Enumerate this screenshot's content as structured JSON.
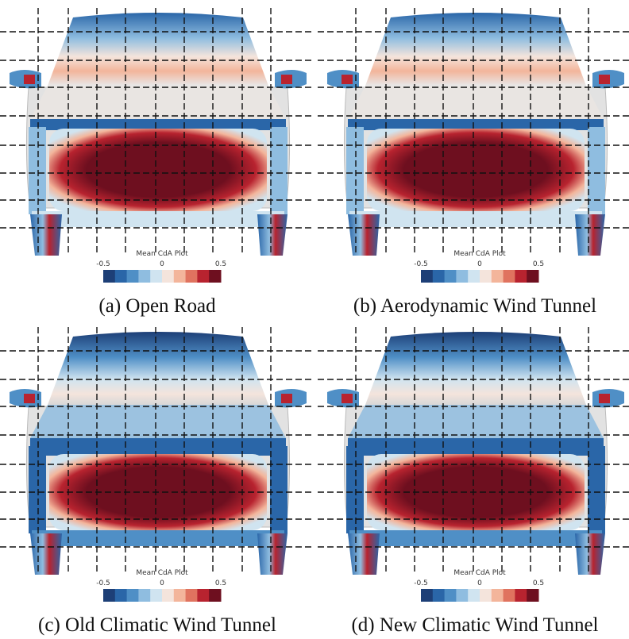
{
  "panels": [
    {
      "caption": "(a) Open Road",
      "colorbar": {
        "title": "Mean CdA Plot",
        "ticks": [
          -0.5,
          0,
          0.5
        ],
        "colors": [
          "#1d3f77",
          "#2a66a8",
          "#4f8fc6",
          "#8fbde0",
          "#d0e4f0",
          "#f4e4dc",
          "#f3b59b",
          "#e0735f",
          "#b8232f",
          "#6e0f1f"
        ]
      }
    },
    {
      "caption": "(b) Aerodynamic Wind Tunnel",
      "colorbar": {
        "title": "Mean CdA Plot",
        "ticks": [
          -0.5,
          0,
          0.5
        ],
        "colors": [
          "#1d3f77",
          "#2a66a8",
          "#4f8fc6",
          "#8fbde0",
          "#d0e4f0",
          "#f4e4dc",
          "#f3b59b",
          "#e0735f",
          "#b8232f",
          "#6e0f1f"
        ]
      }
    },
    {
      "caption": "(c) Old Climatic Wind Tunnel",
      "colorbar": {
        "title": "Mean CdA Plot",
        "ticks": [
          -0.5,
          0,
          0.5
        ],
        "colors": [
          "#1d3f77",
          "#2a66a8",
          "#4f8fc6",
          "#8fbde0",
          "#d0e4f0",
          "#f4e4dc",
          "#f3b59b",
          "#e0735f",
          "#b8232f",
          "#6e0f1f"
        ]
      }
    },
    {
      "caption": "(d) New Climatic Wind Tunnel",
      "colorbar": {
        "title": "Mean CdA Plot",
        "ticks": [
          -0.5,
          0,
          0.5
        ],
        "colors": [
          "#1d3f77",
          "#2a66a8",
          "#4f8fc6",
          "#8fbde0",
          "#d0e4f0",
          "#f4e4dc",
          "#f3b59b",
          "#e0735f",
          "#b8232f",
          "#6e0f1f"
        ]
      }
    }
  ]
}
